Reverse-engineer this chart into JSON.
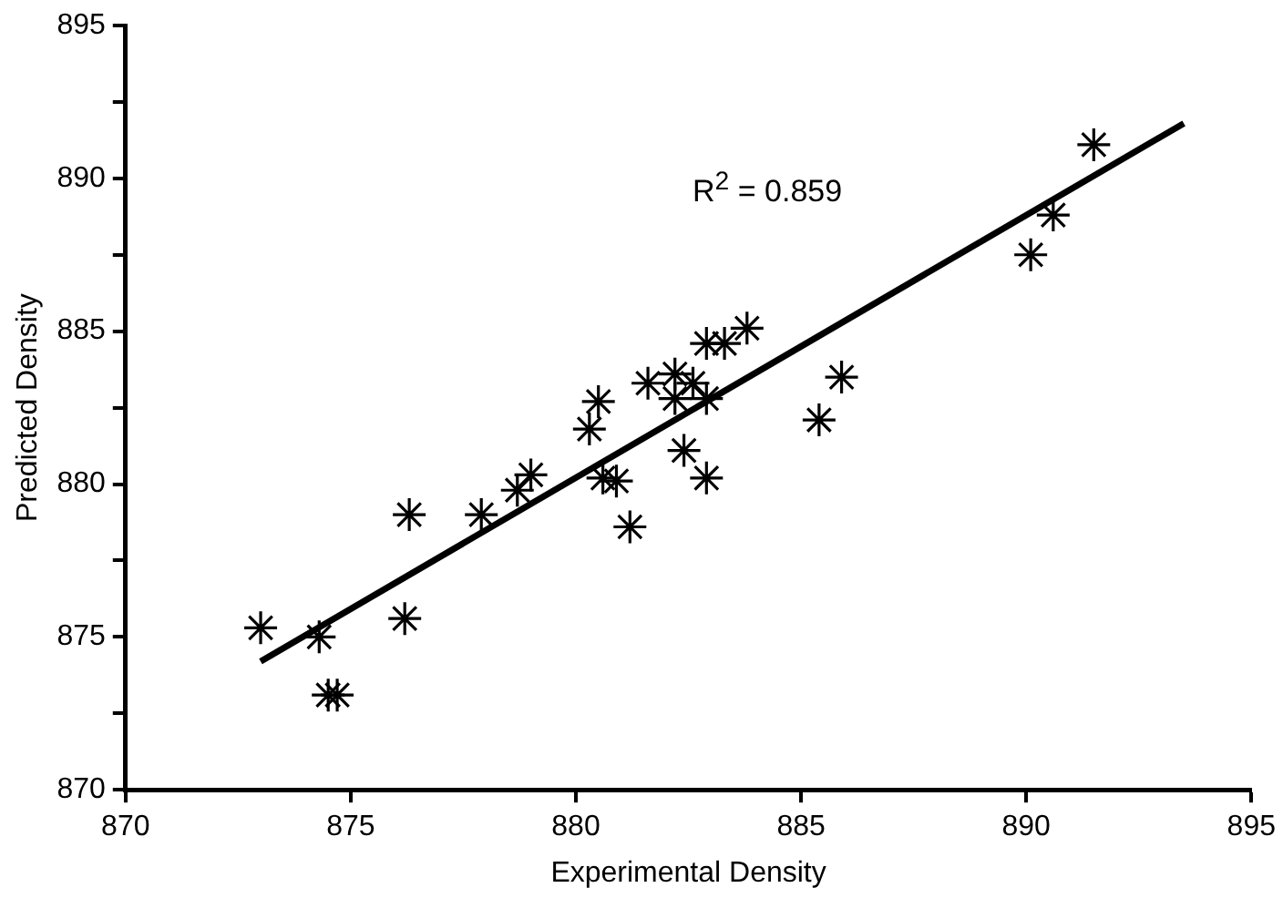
{
  "chart_data": {
    "type": "scatter",
    "xlabel": "Experimental Density",
    "ylabel": "Predicted Density",
    "annotations": [
      "R$^{2}$ = 0.859"
    ],
    "marker": "cross",
    "grid": false,
    "legend": false,
    "xlim": [
      870,
      895
    ],
    "xticks": [
      870,
      875,
      880,
      885,
      890,
      895
    ],
    "ylim": [
      870,
      895
    ],
    "yticks": [
      870,
      {
        "value": 872.5,
        "label": null
      },
      875,
      {
        "value": 877.5,
        "label": null
      },
      880,
      {
        "value": 882.5,
        "label": null
      },
      885,
      {
        "value": 887.5,
        "label": null
      },
      890,
      {
        "value": 892.5,
        "label": null
      },
      895
    ],
    "series": [
      {
        "type": "scatter",
        "color": "#000000",
        "x": [
          873.0,
          874.3,
          874.5,
          874.7,
          876.2,
          876.3,
          877.9,
          878.7,
          879.0,
          880.3,
          880.5,
          880.6,
          880.9,
          881.2,
          881.6,
          882.2,
          882.2,
          882.4,
          882.6,
          882.9,
          882.9,
          882.9,
          883.3,
          883.8,
          885.9,
          885.4,
          890.1,
          890.6,
          891.5
        ],
        "values": [
          875.3,
          875.0,
          873.1,
          873.1,
          875.6,
          879.0,
          879.0,
          879.8,
          880.3,
          881.8,
          882.7,
          880.2,
          880.1,
          878.6,
          883.3,
          883.6,
          882.8,
          881.1,
          883.3,
          880.2,
          882.8,
          884.6,
          884.6,
          885.1,
          883.5,
          882.1,
          887.5,
          888.8,
          891.1
        ]
      },
      {
        "type": "line",
        "color": "#000000",
        "x": [
          873.0,
          893.5
        ],
        "values": [
          874.2,
          891.8
        ],
        "marker": "none",
        "line_style": "solid"
      }
    ]
  }
}
